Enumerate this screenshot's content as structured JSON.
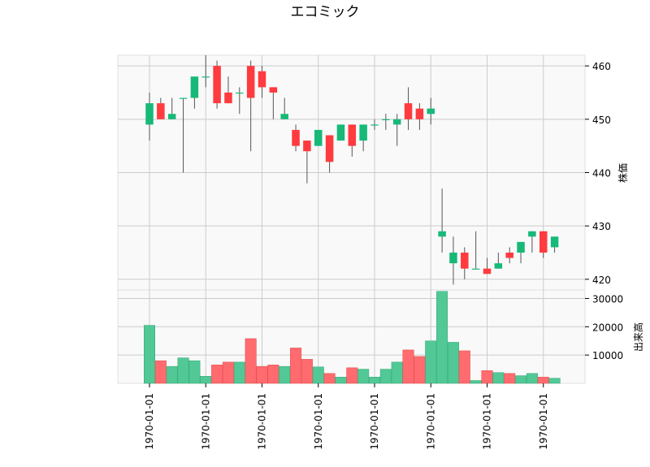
{
  "title": "エコミック",
  "chart_data": {
    "type": "candlestick",
    "title": "エコミック",
    "price_axis": {
      "label": "株価",
      "ylim": [
        418,
        462
      ],
      "ticks": [
        420,
        430,
        440,
        450,
        460
      ],
      "position": "right"
    },
    "volume_axis": {
      "label": "出来高",
      "ylim": [
        0,
        33000
      ],
      "ticks": [
        10000,
        20000,
        30000
      ],
      "position": "right"
    },
    "x_tick_labels": [
      "1970-01-01",
      "1970-01-01",
      "1970-01-01",
      "1970-01-01",
      "1970-01-01",
      "1970-01-01",
      "1970-01-01",
      "1970-01-01"
    ],
    "x_tick_indices": [
      0,
      5,
      10,
      15,
      20,
      25,
      30,
      35
    ],
    "grid": true,
    "colors": {
      "up": "#17b978",
      "down": "#ff3b3f",
      "up_volume": "#52c896",
      "down_volume": "#ff6b6e",
      "wick": "#555555",
      "panel_bg": "#f9f9f9",
      "grid": "#cccccc"
    },
    "candles": [
      {
        "o": 449,
        "h": 455,
        "l": 446,
        "c": 453,
        "v": 20500
      },
      {
        "o": 453,
        "h": 454,
        "l": 450,
        "c": 450,
        "v": 8000
      },
      {
        "o": 450,
        "h": 454,
        "l": 450,
        "c": 451,
        "v": 6000
      },
      {
        "o": 454,
        "h": 454,
        "l": 440,
        "c": 454,
        "v": 9000
      },
      {
        "o": 454,
        "h": 458,
        "l": 452,
        "c": 458,
        "v": 8000
      },
      {
        "o": 458,
        "h": 462,
        "l": 456,
        "c": 458,
        "v": 2500
      },
      {
        "o": 460,
        "h": 461,
        "l": 452,
        "c": 453,
        "v": 6500
      },
      {
        "o": 455,
        "h": 458,
        "l": 453,
        "c": 453,
        "v": 7500
      },
      {
        "o": 455,
        "h": 456,
        "l": 451,
        "c": 455,
        "v": 7500
      },
      {
        "o": 460,
        "h": 461,
        "l": 444,
        "c": 454,
        "v": 15800
      },
      {
        "o": 459,
        "h": 460,
        "l": 454,
        "c": 456,
        "v": 6000
      },
      {
        "o": 456,
        "h": 456,
        "l": 450,
        "c": 455,
        "v": 6500
      },
      {
        "o": 450,
        "h": 454,
        "l": 450,
        "c": 451,
        "v": 6000
      },
      {
        "o": 448,
        "h": 449,
        "l": 444,
        "c": 445,
        "v": 12500
      },
      {
        "o": 446,
        "h": 446,
        "l": 438,
        "c": 444,
        "v": 8500
      },
      {
        "o": 445,
        "h": 448,
        "l": 445,
        "c": 448,
        "v": 5800
      },
      {
        "o": 447,
        "h": 447,
        "l": 440,
        "c": 442,
        "v": 3500
      },
      {
        "o": 446,
        "h": 449,
        "l": 446,
        "c": 449,
        "v": 2200
      },
      {
        "o": 449,
        "h": 449,
        "l": 443,
        "c": 445,
        "v": 5500
      },
      {
        "o": 446,
        "h": 449,
        "l": 444,
        "c": 449,
        "v": 5000
      },
      {
        "o": 449,
        "h": 450,
        "l": 448,
        "c": 449,
        "v": 2200
      },
      {
        "o": 450,
        "h": 451,
        "l": 448,
        "c": 450,
        "v": 5000
      },
      {
        "o": 449,
        "h": 451,
        "l": 445,
        "c": 450,
        "v": 7500
      },
      {
        "o": 453,
        "h": 456,
        "l": 448,
        "c": 450,
        "v": 11800
      },
      {
        "o": 452,
        "h": 453,
        "l": 448,
        "c": 450,
        "v": 9500
      },
      {
        "o": 451,
        "h": 454,
        "l": 449,
        "c": 452,
        "v": 15000
      },
      {
        "o": 428,
        "h": 437,
        "l": 425,
        "c": 429,
        "v": 32500
      },
      {
        "o": 423,
        "h": 428,
        "l": 419,
        "c": 425,
        "v": 14500
      },
      {
        "o": 425,
        "h": 426,
        "l": 420,
        "c": 422,
        "v": 11500
      },
      {
        "o": 422,
        "h": 429,
        "l": 422,
        "c": 422,
        "v": 1000
      },
      {
        "o": 422,
        "h": 424,
        "l": 421,
        "c": 421,
        "v": 4500
      },
      {
        "o": 422,
        "h": 425,
        "l": 422,
        "c": 423,
        "v": 3800
      },
      {
        "o": 425,
        "h": 426,
        "l": 423,
        "c": 424,
        "v": 3500
      },
      {
        "o": 425,
        "h": 427,
        "l": 423,
        "c": 427,
        "v": 2700
      },
      {
        "o": 428,
        "h": 429,
        "l": 425,
        "c": 429,
        "v": 3500
      },
      {
        "o": 429,
        "h": 429,
        "l": 424,
        "c": 425,
        "v": 2200
      },
      {
        "o": 426,
        "h": 428,
        "l": 425,
        "c": 428,
        "v": 1800
      }
    ]
  }
}
